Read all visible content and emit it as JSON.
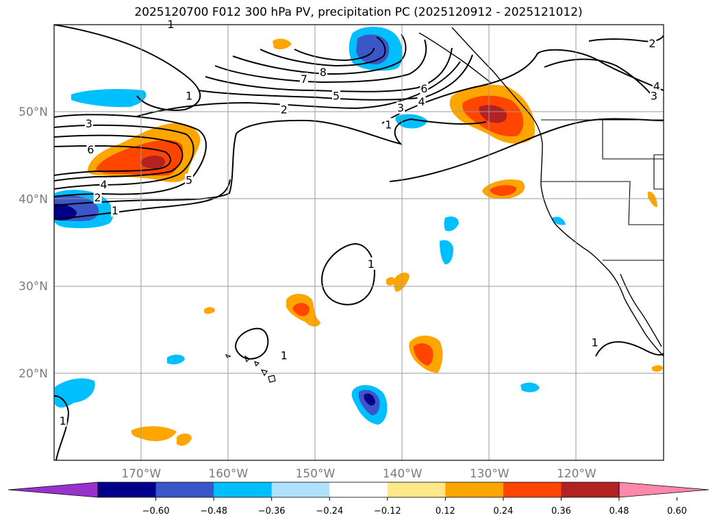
{
  "title": "2025120700 F012 300 hPa PV, precipitation PC (2025120912 - 2025121012)",
  "chart_data": {
    "type": "contour-map",
    "title": "2025120700 F012 300 hPa PV, precipitation PC (2025120912 - 2025121012)",
    "projection": "cylindrical",
    "lon_range": [
      -180,
      -110
    ],
    "lat_range": [
      10,
      60
    ],
    "lat_ticks": [
      20,
      30,
      40,
      50
    ],
    "lat_tick_labels": [
      "20°N",
      "30°N",
      "40°N",
      "50°N"
    ],
    "lon_ticks": [
      -170,
      -160,
      -150,
      -140,
      -130,
      -120
    ],
    "lon_tick_labels": [
      "170°W",
      "160°W",
      "150°W",
      "140°W",
      "130°W",
      "120°W"
    ],
    "grid": true,
    "colorbar": {
      "orientation": "horizontal",
      "extend": "both",
      "bounds": [
        -0.6,
        -0.48,
        -0.36,
        -0.24,
        -0.12,
        0.12,
        0.24,
        0.36,
        0.48,
        0.6
      ],
      "tick_labels": [
        "−0.60",
        "−0.48",
        "−0.36",
        "−0.24",
        "−0.12",
        "0.12",
        "0.24",
        "0.36",
        "0.48",
        "0.60"
      ],
      "colors": [
        "#9932cc",
        "#00008b",
        "#3a56c8",
        "#00bfff",
        "#b0e2ff",
        "#ffffff",
        "#ffe88a",
        "#ffa500",
        "#ff4500",
        "#b22222",
        "#ff88aa"
      ]
    },
    "pv_contour_levels": [
      1,
      2,
      3,
      4,
      5,
      6,
      7,
      8
    ],
    "contour_labels": [
      {
        "text": "1",
        "lon": -179,
        "lat": 14.5
      },
      {
        "text": "1",
        "lon": -173,
        "lat": 38.6
      },
      {
        "text": "2",
        "lon": -175,
        "lat": 40.1
      },
      {
        "text": "4",
        "lon": -174.3,
        "lat": 41.6
      },
      {
        "text": "5",
        "lon": -164.5,
        "lat": 42.1
      },
      {
        "text": "6",
        "lon": -175.8,
        "lat": 45.6
      },
      {
        "text": "3",
        "lon": -176,
        "lat": 48.6
      },
      {
        "text": "1",
        "lon": -164.5,
        "lat": 51.8
      },
      {
        "text": "2",
        "lon": -153.6,
        "lat": 50.2
      },
      {
        "text": "5",
        "lon": -147.6,
        "lat": 51.8
      },
      {
        "text": "7",
        "lon": -151.3,
        "lat": 53.7
      },
      {
        "text": "8",
        "lon": -149.1,
        "lat": 54.5
      },
      {
        "text": "3",
        "lon": -140.2,
        "lat": 50.4
      },
      {
        "text": "4",
        "lon": -137.8,
        "lat": 51.1
      },
      {
        "text": "6",
        "lon": -137.5,
        "lat": 52.6
      },
      {
        "text": "1",
        "lon": -141.6,
        "lat": 48.5
      },
      {
        "text": "1",
        "lon": -166.6,
        "lat": 60.0
      },
      {
        "text": "1",
        "lon": -143.6,
        "lat": 32.5
      },
      {
        "text": "1",
        "lon": -153.6,
        "lat": 22.0
      },
      {
        "text": "1",
        "lon": -117.9,
        "lat": 23.5
      },
      {
        "text": "2",
        "lon": -111.3,
        "lat": 57.8
      },
      {
        "text": "4",
        "lon": -110.8,
        "lat": 52.9
      },
      {
        "text": "3",
        "lon": -111.1,
        "lat": 51.8
      }
    ]
  }
}
